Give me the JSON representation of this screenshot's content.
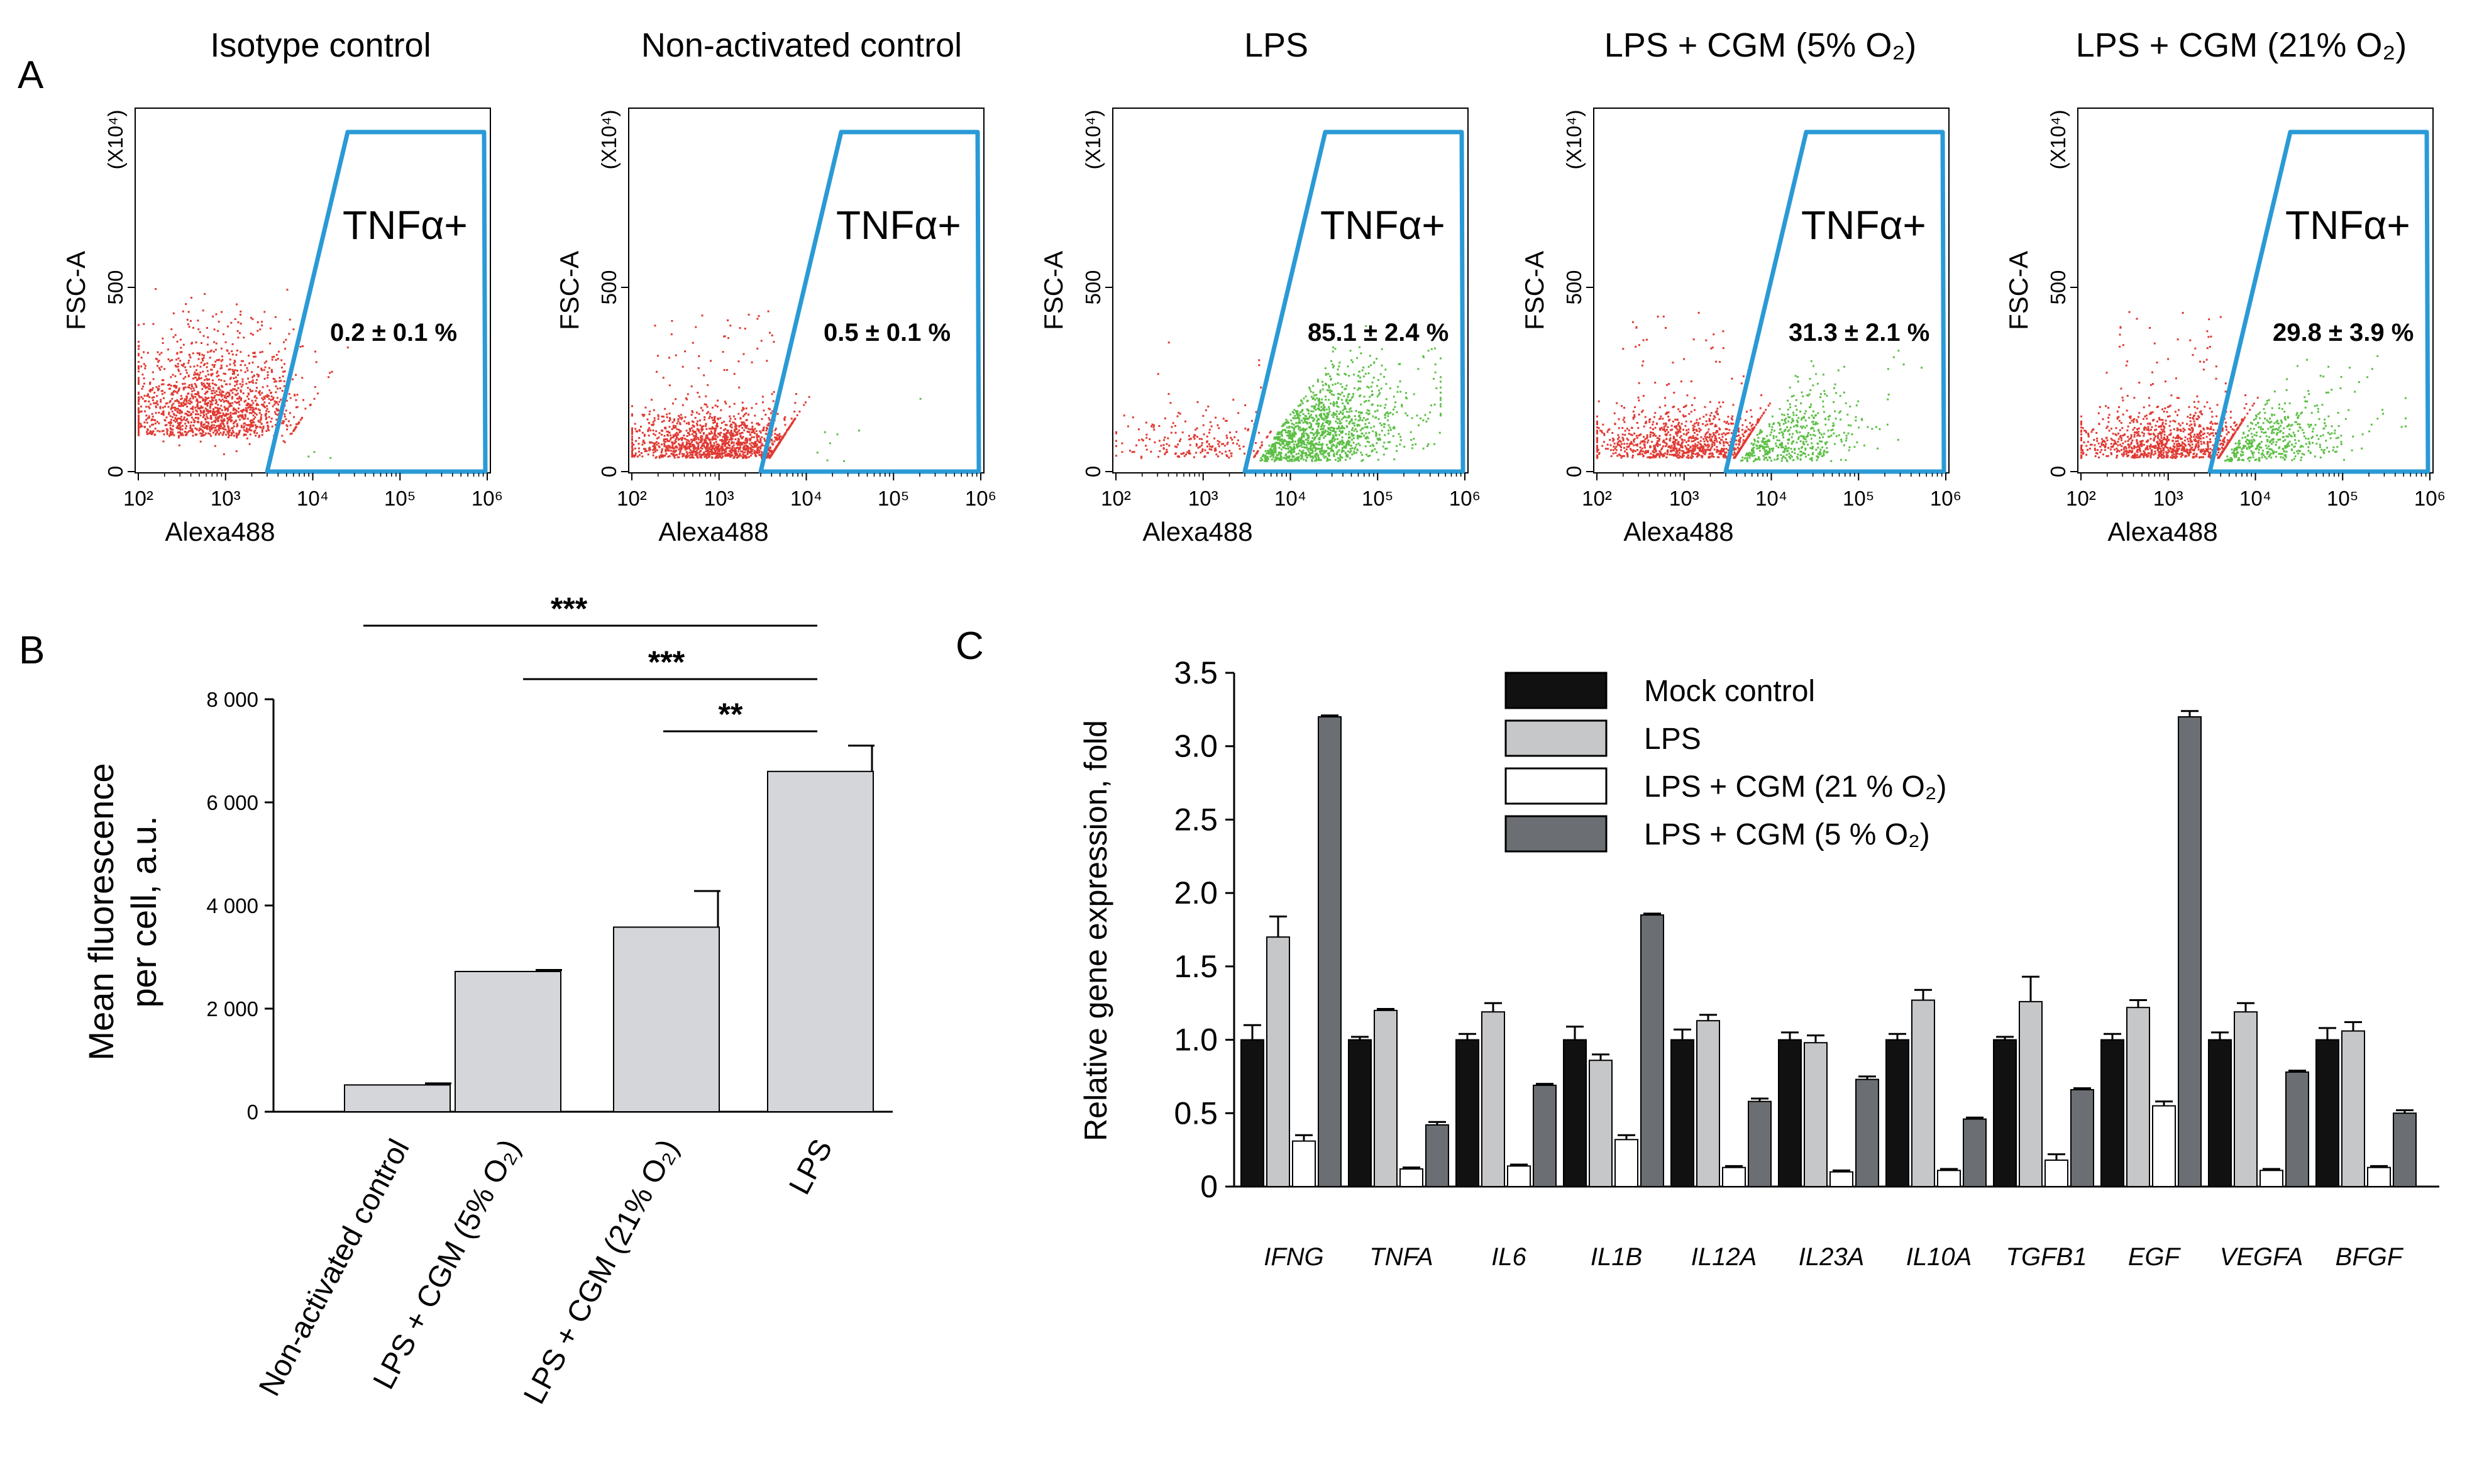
{
  "colors": {
    "gate": "#2a9ad6",
    "neg_events": "#e03a33",
    "pos_events": "#5cbf45",
    "bar_b": "#d4d6da",
    "mock": "#111111",
    "lps": "#c6c7c9",
    "cgm21": "#ffffff",
    "cgm5": "#6b6e72"
  },
  "panel_a": {
    "letter": "A",
    "x_axis_label": "Alexa488",
    "y_axis_label": "FSC-A",
    "y_multiplier": "(X10⁴)",
    "y_ticks": [
      "0",
      "500"
    ],
    "x_ticks": [
      "10²",
      "10³",
      "10⁴",
      "10⁵",
      "10⁶"
    ],
    "gate_label": "TNFα+",
    "plots": [
      {
        "title": "Isotype control",
        "percent": "0.2 ± 0.1 %",
        "positive_fraction": 0.002
      },
      {
        "title": "Non-activated control",
        "percent": "0.5 ± 0.1 %",
        "positive_fraction": 0.005
      },
      {
        "title": "LPS",
        "percent": "85.1 ± 2.4 %",
        "positive_fraction": 0.851
      },
      {
        "title": "LPS + CGM (5% O₂)",
        "percent": "31.3 ± 2.1 %",
        "positive_fraction": 0.313
      },
      {
        "title": "LPS + CGM (21% O₂)",
        "percent": "29.8 ± 3.9 %",
        "positive_fraction": 0.298
      }
    ]
  },
  "panel_b": {
    "letter": "B",
    "significance": [
      "***",
      "***",
      "**"
    ],
    "chart_data": {
      "type": "bar",
      "ylabel_line1": "Mean fluorescence",
      "ylabel_line2": "per cell, a.u.",
      "ylim": [
        0,
        8000
      ],
      "yticks": [
        0,
        2000,
        4000,
        6000,
        8000
      ],
      "ytick_labels": [
        "0",
        "2 000",
        "4 000",
        "6 000",
        "8 000"
      ],
      "categories": [
        "Non-activated control",
        "LPS + CGM (5% O₂)",
        "LPS + CGM (21% O₂)",
        "LPS"
      ],
      "values": [
        520,
        2720,
        3580,
        6600
      ],
      "errors": [
        30,
        30,
        700,
        500
      ]
    }
  },
  "panel_c": {
    "letter": "C",
    "chart_data": {
      "type": "bar",
      "ylabel": "Relative gene expression, fold",
      "ylim": [
        0,
        3.5
      ],
      "yticks": [
        "0",
        "0.5",
        "1.0",
        "1.5",
        "2.0",
        "2.5",
        "3.0",
        "3.5"
      ],
      "categories": [
        "IFNG",
        "TNFA",
        "IL6",
        "IL1B",
        "IL12A",
        "IL23A",
        "IL10A",
        "TGFB1",
        "EGF",
        "VEGFA",
        "BFGF"
      ],
      "series": [
        {
          "name": "Mock control",
          "color_key": "mock",
          "values": [
            1.0,
            1.0,
            1.0,
            1.0,
            1.0,
            1.0,
            1.0,
            1.0,
            1.0,
            1.0,
            1.0
          ],
          "errors": [
            0.1,
            0.02,
            0.04,
            0.09,
            0.07,
            0.05,
            0.04,
            0.02,
            0.04,
            0.05,
            0.08
          ]
        },
        {
          "name": "LPS",
          "color_key": "lps",
          "values": [
            1.7,
            1.2,
            1.19,
            0.86,
            1.13,
            0.98,
            1.27,
            1.26,
            1.22,
            1.19,
            1.06
          ],
          "errors": [
            0.14,
            0.01,
            0.06,
            0.04,
            0.04,
            0.05,
            0.07,
            0.17,
            0.05,
            0.06,
            0.06
          ]
        },
        {
          "name": "LPS + CGM (21 % O₂)",
          "color_key": "cgm21",
          "values": [
            0.31,
            0.12,
            0.14,
            0.32,
            0.13,
            0.1,
            0.11,
            0.18,
            0.55,
            0.11,
            0.13
          ],
          "errors": [
            0.04,
            0.01,
            0.01,
            0.03,
            0.01,
            0.01,
            0.01,
            0.04,
            0.03,
            0.01,
            0.01
          ]
        },
        {
          "name": "LPS + CGM (5 % O₂)",
          "color_key": "cgm5",
          "values": [
            3.2,
            0.42,
            0.69,
            1.85,
            0.58,
            0.73,
            0.46,
            0.66,
            3.2,
            0.78,
            0.5
          ],
          "errors": [
            0.01,
            0.02,
            0.01,
            0.01,
            0.02,
            0.02,
            0.01,
            0.01,
            0.04,
            0.01,
            0.02
          ]
        }
      ]
    }
  }
}
